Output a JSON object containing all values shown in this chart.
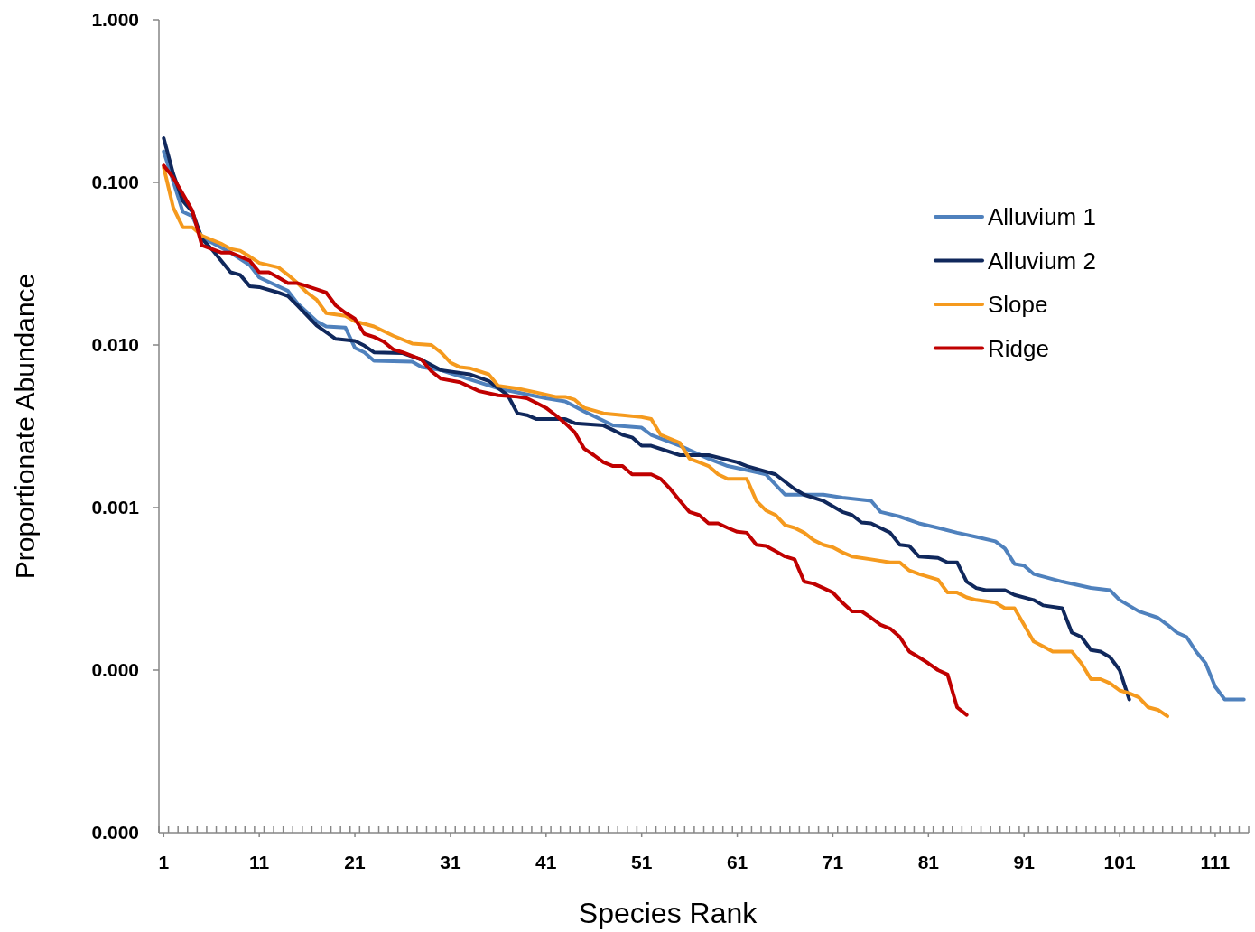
{
  "chart_data": {
    "type": "line",
    "xlabel": "Species Rank",
    "ylabel": "Proportionate Abundance",
    "log": "y",
    "legend": "right",
    "marker": "none",
    "line_style": "solid",
    "xlim": [
      0.5,
      114.5
    ],
    "xticks": [
      {
        "value": 0.5,
        "label": null
      },
      1,
      {
        "value": 1.5,
        "label": null
      },
      {
        "value": 2.5,
        "label": null
      },
      {
        "value": 3.5,
        "label": null
      },
      {
        "value": 4.5,
        "label": null
      },
      {
        "value": 5.5,
        "label": null
      },
      {
        "value": 6.5,
        "label": null
      },
      {
        "value": 7.5,
        "label": null
      },
      {
        "value": 8.5,
        "label": null
      },
      {
        "value": 9.5,
        "label": null
      },
      {
        "value": 10.5,
        "label": null
      },
      11,
      {
        "value": 11.5,
        "label": null
      },
      {
        "value": 12.5,
        "label": null
      },
      {
        "value": 13.5,
        "label": null
      },
      {
        "value": 14.5,
        "label": null
      },
      {
        "value": 15.5,
        "label": null
      },
      {
        "value": 16.5,
        "label": null
      },
      {
        "value": 17.5,
        "label": null
      },
      {
        "value": 18.5,
        "label": null
      },
      {
        "value": 19.5,
        "label": null
      },
      {
        "value": 20.5,
        "label": null
      },
      21,
      {
        "value": 21.5,
        "label": null
      },
      {
        "value": 22.5,
        "label": null
      },
      {
        "value": 23.5,
        "label": null
      },
      {
        "value": 24.5,
        "label": null
      },
      {
        "value": 25.5,
        "label": null
      },
      {
        "value": 26.5,
        "label": null
      },
      {
        "value": 27.5,
        "label": null
      },
      {
        "value": 28.5,
        "label": null
      },
      {
        "value": 29.5,
        "label": null
      },
      {
        "value": 30.5,
        "label": null
      },
      31,
      {
        "value": 31.5,
        "label": null
      },
      {
        "value": 32.5,
        "label": null
      },
      {
        "value": 33.5,
        "label": null
      },
      {
        "value": 34.5,
        "label": null
      },
      {
        "value": 35.5,
        "label": null
      },
      {
        "value": 36.5,
        "label": null
      },
      {
        "value": 37.5,
        "label": null
      },
      {
        "value": 38.5,
        "label": null
      },
      {
        "value": 39.5,
        "label": null
      },
      {
        "value": 40.5,
        "label": null
      },
      41,
      {
        "value": 41.5,
        "label": null
      },
      {
        "value": 42.5,
        "label": null
      },
      {
        "value": 43.5,
        "label": null
      },
      {
        "value": 44.5,
        "label": null
      },
      {
        "value": 45.5,
        "label": null
      },
      {
        "value": 46.5,
        "label": null
      },
      {
        "value": 47.5,
        "label": null
      },
      {
        "value": 48.5,
        "label": null
      },
      {
        "value": 49.5,
        "label": null
      },
      {
        "value": 50.5,
        "label": null
      },
      51,
      {
        "value": 51.5,
        "label": null
      },
      {
        "value": 52.5,
        "label": null
      },
      {
        "value": 53.5,
        "label": null
      },
      {
        "value": 54.5,
        "label": null
      },
      {
        "value": 55.5,
        "label": null
      },
      {
        "value": 56.5,
        "label": null
      },
      {
        "value": 57.5,
        "label": null
      },
      {
        "value": 58.5,
        "label": null
      },
      {
        "value": 59.5,
        "label": null
      },
      {
        "value": 60.5,
        "label": null
      },
      61,
      {
        "value": 61.5,
        "label": null
      },
      {
        "value": 62.5,
        "label": null
      },
      {
        "value": 63.5,
        "label": null
      },
      {
        "value": 64.5,
        "label": null
      },
      {
        "value": 65.5,
        "label": null
      },
      {
        "value": 66.5,
        "label": null
      },
      {
        "value": 67.5,
        "label": null
      },
      {
        "value": 68.5,
        "label": null
      },
      {
        "value": 69.5,
        "label": null
      },
      {
        "value": 70.5,
        "label": null
      },
      71,
      {
        "value": 71.5,
        "label": null
      },
      {
        "value": 72.5,
        "label": null
      },
      {
        "value": 73.5,
        "label": null
      },
      {
        "value": 74.5,
        "label": null
      },
      {
        "value": 75.5,
        "label": null
      },
      {
        "value": 76.5,
        "label": null
      },
      {
        "value": 77.5,
        "label": null
      },
      {
        "value": 78.5,
        "label": null
      },
      {
        "value": 79.5,
        "label": null
      },
      {
        "value": 80.5,
        "label": null
      },
      81,
      {
        "value": 81.5,
        "label": null
      },
      {
        "value": 82.5,
        "label": null
      },
      {
        "value": 83.5,
        "label": null
      },
      {
        "value": 84.5,
        "label": null
      },
      {
        "value": 85.5,
        "label": null
      },
      {
        "value": 86.5,
        "label": null
      },
      {
        "value": 87.5,
        "label": null
      },
      {
        "value": 88.5,
        "label": null
      },
      {
        "value": 89.5,
        "label": null
      },
      {
        "value": 90.5,
        "label": null
      },
      91,
      {
        "value": 91.5,
        "label": null
      },
      {
        "value": 92.5,
        "label": null
      },
      {
        "value": 93.5,
        "label": null
      },
      {
        "value": 94.5,
        "label": null
      },
      {
        "value": 95.5,
        "label": null
      },
      {
        "value": 96.5,
        "label": null
      },
      {
        "value": 97.5,
        "label": null
      },
      {
        "value": 98.5,
        "label": null
      },
      {
        "value": 99.5,
        "label": null
      },
      {
        "value": 100.5,
        "label": null
      },
      101,
      {
        "value": 101.5,
        "label": null
      },
      {
        "value": 102.5,
        "label": null
      },
      {
        "value": 103.5,
        "label": null
      },
      {
        "value": 104.5,
        "label": null
      },
      {
        "value": 105.5,
        "label": null
      },
      {
        "value": 106.5,
        "label": null
      },
      {
        "value": 107.5,
        "label": null
      },
      {
        "value": 108.5,
        "label": null
      },
      {
        "value": 109.5,
        "label": null
      },
      {
        "value": 110.5,
        "label": null
      },
      111,
      {
        "value": 111.5,
        "label": null
      },
      {
        "value": 112.5,
        "label": null
      },
      {
        "value": 113.5,
        "label": null
      },
      {
        "value": 114.5,
        "label": null
      }
    ],
    "ylim": [
      1e-05,
      1
    ],
    "yticks": [
      {
        "value": 1,
        "label": "1.000"
      },
      {
        "value": 0.1,
        "label": "0.100"
      },
      {
        "value": 0.01,
        "label": "0.010"
      },
      {
        "value": 0.001,
        "label": "0.001"
      },
      {
        "value": 0.0001,
        "label": "0.000"
      },
      {
        "value": 1e-05,
        "label": "0.000"
      }
    ],
    "series": [
      {
        "name": "Alluvium 1",
        "color": "#4f81bd",
        "x": [
          1,
          3,
          4,
          5,
          8,
          10,
          11,
          14,
          15,
          17,
          18,
          20,
          21,
          22,
          23,
          27,
          28,
          30,
          31,
          36,
          41,
          43,
          45,
          48,
          51,
          52,
          55,
          58,
          60,
          62,
          64,
          66,
          70,
          72,
          75,
          76,
          78,
          80,
          82,
          84,
          86,
          88,
          89,
          90,
          91,
          92,
          95,
          98,
          100,
          101,
          103,
          105,
          106,
          107,
          108,
          109,
          110,
          111,
          112,
          113,
          114
        ],
        "values": [
          0.155,
          0.066,
          0.062,
          0.046,
          0.037,
          0.031,
          0.026,
          0.0215,
          0.018,
          0.014,
          0.013,
          0.0128,
          0.0096,
          0.009,
          0.008,
          0.0079,
          0.0073,
          0.007,
          0.0067,
          0.0054,
          0.0047,
          0.0045,
          0.0039,
          0.0032,
          0.0031,
          0.0028,
          0.0024,
          0.002,
          0.0018,
          0.0017,
          0.0016,
          0.0012,
          0.0012,
          0.00115,
          0.0011,
          0.00094,
          0.00088,
          0.0008,
          0.00075,
          0.0007,
          0.00066,
          0.00062,
          0.00056,
          0.00045,
          0.00044,
          0.00039,
          0.00035,
          0.00032,
          0.00031,
          0.00027,
          0.00023,
          0.00021,
          0.00019,
          0.00017,
          0.00016,
          0.00013,
          0.00011,
          7.9e-05,
          6.6e-05,
          6.6e-05,
          6.6e-05
        ]
      },
      {
        "name": "Alluvium 2",
        "color": "#10285c",
        "x": [
          1,
          2,
          3,
          4,
          5,
          6,
          8,
          9,
          10,
          11,
          13,
          14,
          15,
          17,
          19,
          21,
          22,
          23,
          26,
          28,
          30,
          33,
          35,
          37,
          38,
          39,
          40,
          43,
          44,
          47,
          48,
          49,
          50,
          51,
          52,
          55,
          58,
          61,
          62,
          65,
          67,
          68,
          70,
          72,
          73,
          74,
          75,
          77,
          78,
          79,
          80,
          82,
          83,
          84,
          85,
          86,
          87,
          89,
          90,
          92,
          93,
          95,
          96,
          97,
          98,
          99,
          100,
          101,
          102
        ],
        "values": [
          0.187,
          0.113,
          0.077,
          0.066,
          0.045,
          0.039,
          0.028,
          0.027,
          0.023,
          0.0227,
          0.021,
          0.02,
          0.0175,
          0.0132,
          0.0109,
          0.0106,
          0.0099,
          0.009,
          0.0089,
          0.0081,
          0.007,
          0.0066,
          0.006,
          0.0049,
          0.0038,
          0.0037,
          0.0035,
          0.0035,
          0.0033,
          0.0032,
          0.003,
          0.0028,
          0.0027,
          0.0024,
          0.0024,
          0.0021,
          0.0021,
          0.0019,
          0.0018,
          0.0016,
          0.0013,
          0.0012,
          0.0011,
          0.00094,
          0.0009,
          0.00081,
          0.0008,
          0.0007,
          0.00059,
          0.00058,
          0.0005,
          0.00049,
          0.00046,
          0.00046,
          0.00035,
          0.00032,
          0.00031,
          0.00031,
          0.00029,
          0.00027,
          0.00025,
          0.00024,
          0.00017,
          0.00016,
          0.000133,
          0.00013,
          0.00012,
          0.0001,
          6.6e-05
        ]
      },
      {
        "name": "Slope",
        "color": "#f59a1e",
        "x": [
          1,
          2,
          3,
          4,
          5,
          7,
          8,
          9,
          10,
          11,
          13,
          14,
          15,
          16,
          17,
          18,
          20,
          21,
          23,
          25,
          27,
          29,
          30,
          31,
          32,
          33,
          35,
          36,
          38,
          40,
          42,
          43,
          44,
          45,
          47,
          49,
          51,
          52,
          53,
          55,
          56,
          57,
          58,
          59,
          60,
          62,
          63,
          64,
          65,
          66,
          67,
          68,
          69,
          70,
          71,
          72,
          73,
          75,
          77,
          78,
          79,
          80,
          82,
          83,
          84,
          85,
          86,
          88,
          89,
          90,
          91,
          92,
          93,
          94,
          95,
          96,
          97,
          98,
          99,
          100,
          101,
          102,
          103,
          104,
          105,
          106
        ],
        "values": [
          0.124,
          0.07,
          0.053,
          0.053,
          0.047,
          0.042,
          0.039,
          0.038,
          0.035,
          0.032,
          0.03,
          0.027,
          0.024,
          0.021,
          0.019,
          0.0157,
          0.0151,
          0.014,
          0.013,
          0.0114,
          0.0102,
          0.01,
          0.009,
          0.0078,
          0.0073,
          0.0072,
          0.0066,
          0.0056,
          0.0054,
          0.0051,
          0.0048,
          0.0048,
          0.0046,
          0.0041,
          0.0038,
          0.0037,
          0.0036,
          0.0035,
          0.0028,
          0.0025,
          0.002,
          0.0019,
          0.0018,
          0.0016,
          0.0015,
          0.0015,
          0.0011,
          0.00096,
          0.0009,
          0.00078,
          0.00075,
          0.0007,
          0.00063,
          0.00059,
          0.00057,
          0.00053,
          0.0005,
          0.00048,
          0.00046,
          0.00046,
          0.00041,
          0.00039,
          0.00036,
          0.0003,
          0.0003,
          0.00028,
          0.00027,
          0.00026,
          0.00024,
          0.00024,
          0.00019,
          0.00015,
          0.00014,
          0.00013,
          0.00013,
          0.00013,
          0.00011,
          8.8e-05,
          8.8e-05,
          8.3e-05,
          7.5e-05,
          7.2e-05,
          6.8e-05,
          5.9e-05,
          5.7e-05,
          5.2e-05
        ]
      },
      {
        "name": "Ridge",
        "color": "#c00000",
        "x": [
          1,
          2,
          3,
          4,
          5,
          6,
          7,
          8,
          10,
          11,
          12,
          13,
          14,
          15,
          16,
          17,
          18,
          19,
          20,
          21,
          22,
          23,
          24,
          25,
          26,
          28,
          29,
          30,
          32,
          34,
          36,
          38,
          39,
          40,
          41,
          42,
          43,
          44,
          45,
          46,
          47,
          48,
          49,
          50,
          52,
          53,
          54,
          55,
          56,
          57,
          58,
          59,
          60,
          61,
          62,
          63,
          64,
          65,
          66,
          67,
          68,
          69,
          70,
          71,
          72,
          73,
          74,
          75,
          76,
          77,
          78,
          79,
          80,
          81,
          82,
          83,
          84,
          85
        ],
        "values": [
          0.127,
          0.107,
          0.085,
          0.067,
          0.041,
          0.039,
          0.037,
          0.037,
          0.033,
          0.028,
          0.028,
          0.026,
          0.024,
          0.024,
          0.023,
          0.022,
          0.021,
          0.0175,
          0.0158,
          0.0145,
          0.0117,
          0.0112,
          0.0105,
          0.0094,
          0.009,
          0.0081,
          0.0069,
          0.0062,
          0.0059,
          0.0052,
          0.0049,
          0.0048,
          0.0047,
          0.0044,
          0.0041,
          0.0037,
          0.0033,
          0.0029,
          0.0023,
          0.0021,
          0.0019,
          0.0018,
          0.0018,
          0.0016,
          0.0016,
          0.0015,
          0.0013,
          0.0011,
          0.00094,
          0.0009,
          0.0008,
          0.0008,
          0.00075,
          0.00071,
          0.0007,
          0.00059,
          0.00058,
          0.00054,
          0.0005,
          0.00048,
          0.00035,
          0.00034,
          0.00032,
          0.0003,
          0.00026,
          0.00023,
          0.00023,
          0.00021,
          0.00019,
          0.00018,
          0.00016,
          0.00013,
          0.00012,
          0.00011,
          0.0001,
          9.4e-05,
          5.9e-05,
          5.3e-05
        ]
      }
    ]
  }
}
